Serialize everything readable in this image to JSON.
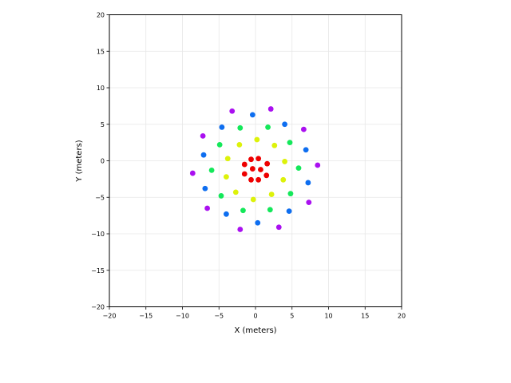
{
  "chart_data": {
    "type": "scatter",
    "title": "",
    "xlabel": "X (meters)",
    "ylabel": "Y (meters)",
    "xlim": [
      -20,
      20
    ],
    "ylim": [
      -20,
      20
    ],
    "xticks": [
      -20,
      -15,
      -10,
      -5,
      0,
      5,
      10,
      15,
      20
    ],
    "yticks": [
      -20,
      -15,
      -10,
      -5,
      0,
      5,
      10,
      15,
      20
    ],
    "xtick_labels": [
      "−20",
      "−15",
      "−10",
      "−5",
      "0",
      "5",
      "10",
      "15",
      "20"
    ],
    "ytick_labels": [
      "−20",
      "−15",
      "−10",
      "−5",
      "0",
      "5",
      "10",
      "15",
      "20"
    ],
    "grid": true,
    "legend": false,
    "series": [
      {
        "color": "#ee0000",
        "points": [
          [
            0.4,
            0.3
          ],
          [
            1.6,
            -0.4
          ],
          [
            0.7,
            -1.2
          ],
          [
            1.5,
            -2.0
          ],
          [
            0.4,
            -2.6
          ],
          [
            -0.6,
            -2.6
          ],
          [
            -1.5,
            -1.8
          ],
          [
            -0.4,
            -1.1
          ],
          [
            -1.5,
            -0.5
          ],
          [
            -0.6,
            0.2
          ]
        ]
      },
      {
        "color": "#ddf20a",
        "points": [
          [
            0.2,
            2.9
          ],
          [
            2.6,
            2.1
          ],
          [
            4.0,
            -0.1
          ],
          [
            3.8,
            -2.6
          ],
          [
            2.2,
            -4.6
          ],
          [
            -0.3,
            -5.3
          ],
          [
            -2.7,
            -4.3
          ],
          [
            -4.0,
            -2.2
          ],
          [
            -3.8,
            0.3
          ],
          [
            -2.2,
            2.2
          ]
        ]
      },
      {
        "color": "#14e85a",
        "points": [
          [
            1.7,
            4.6
          ],
          [
            4.7,
            2.5
          ],
          [
            5.9,
            -1.0
          ],
          [
            4.8,
            -4.5
          ],
          [
            2.0,
            -6.7
          ],
          [
            -1.7,
            -6.8
          ],
          [
            -4.7,
            -4.8
          ],
          [
            -6.0,
            -1.3
          ],
          [
            -4.9,
            2.2
          ],
          [
            -2.1,
            4.5
          ]
        ]
      },
      {
        "color": "#0e6ef0",
        "points": [
          [
            -0.4,
            6.3
          ],
          [
            4.0,
            5.0
          ],
          [
            6.9,
            1.5
          ],
          [
            7.2,
            -3.0
          ],
          [
            4.6,
            -6.9
          ],
          [
            0.3,
            -8.5
          ],
          [
            -4.0,
            -7.3
          ],
          [
            -6.9,
            -3.8
          ],
          [
            -7.1,
            0.8
          ],
          [
            -4.6,
            4.6
          ]
        ]
      },
      {
        "color": "#aa10f0",
        "points": [
          [
            2.1,
            7.1
          ],
          [
            6.6,
            4.3
          ],
          [
            8.5,
            -0.6
          ],
          [
            7.3,
            -5.7
          ],
          [
            3.2,
            -9.1
          ],
          [
            -2.1,
            -9.4
          ],
          [
            -6.6,
            -6.5
          ],
          [
            -8.6,
            -1.7
          ],
          [
            -7.2,
            3.4
          ],
          [
            -3.2,
            6.8
          ]
        ]
      }
    ]
  }
}
